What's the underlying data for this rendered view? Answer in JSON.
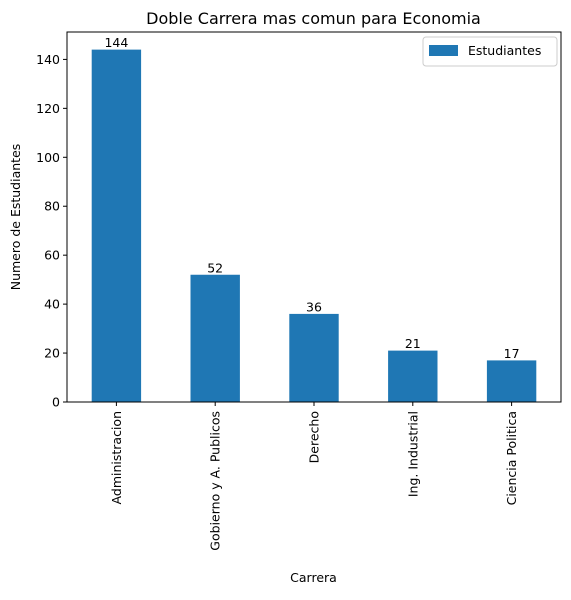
{
  "colors": {
    "bar": "#1f77b4",
    "axis": "#000000",
    "background": "#ffffff",
    "legend_border": "#cccccc"
  },
  "chart_data": {
    "type": "bar",
    "title": "Doble Carrera mas comun para Economia",
    "xlabel": "Carrera",
    "ylabel": "Numero de Estudiantes",
    "categories": [
      "Administracion",
      "Gobierno y A. Publicos",
      "Derecho",
      "Ing. Industrial",
      "Ciencia Politica"
    ],
    "series": [
      {
        "name": "Estudiantes",
        "values": [
          144,
          52,
          36,
          21,
          17
        ]
      }
    ],
    "ylim": [
      0,
      151.2
    ],
    "yticks": [
      0,
      20,
      40,
      60,
      80,
      100,
      120,
      140
    ],
    "data_labels": true,
    "grid": false,
    "legend_position": "top-right"
  }
}
